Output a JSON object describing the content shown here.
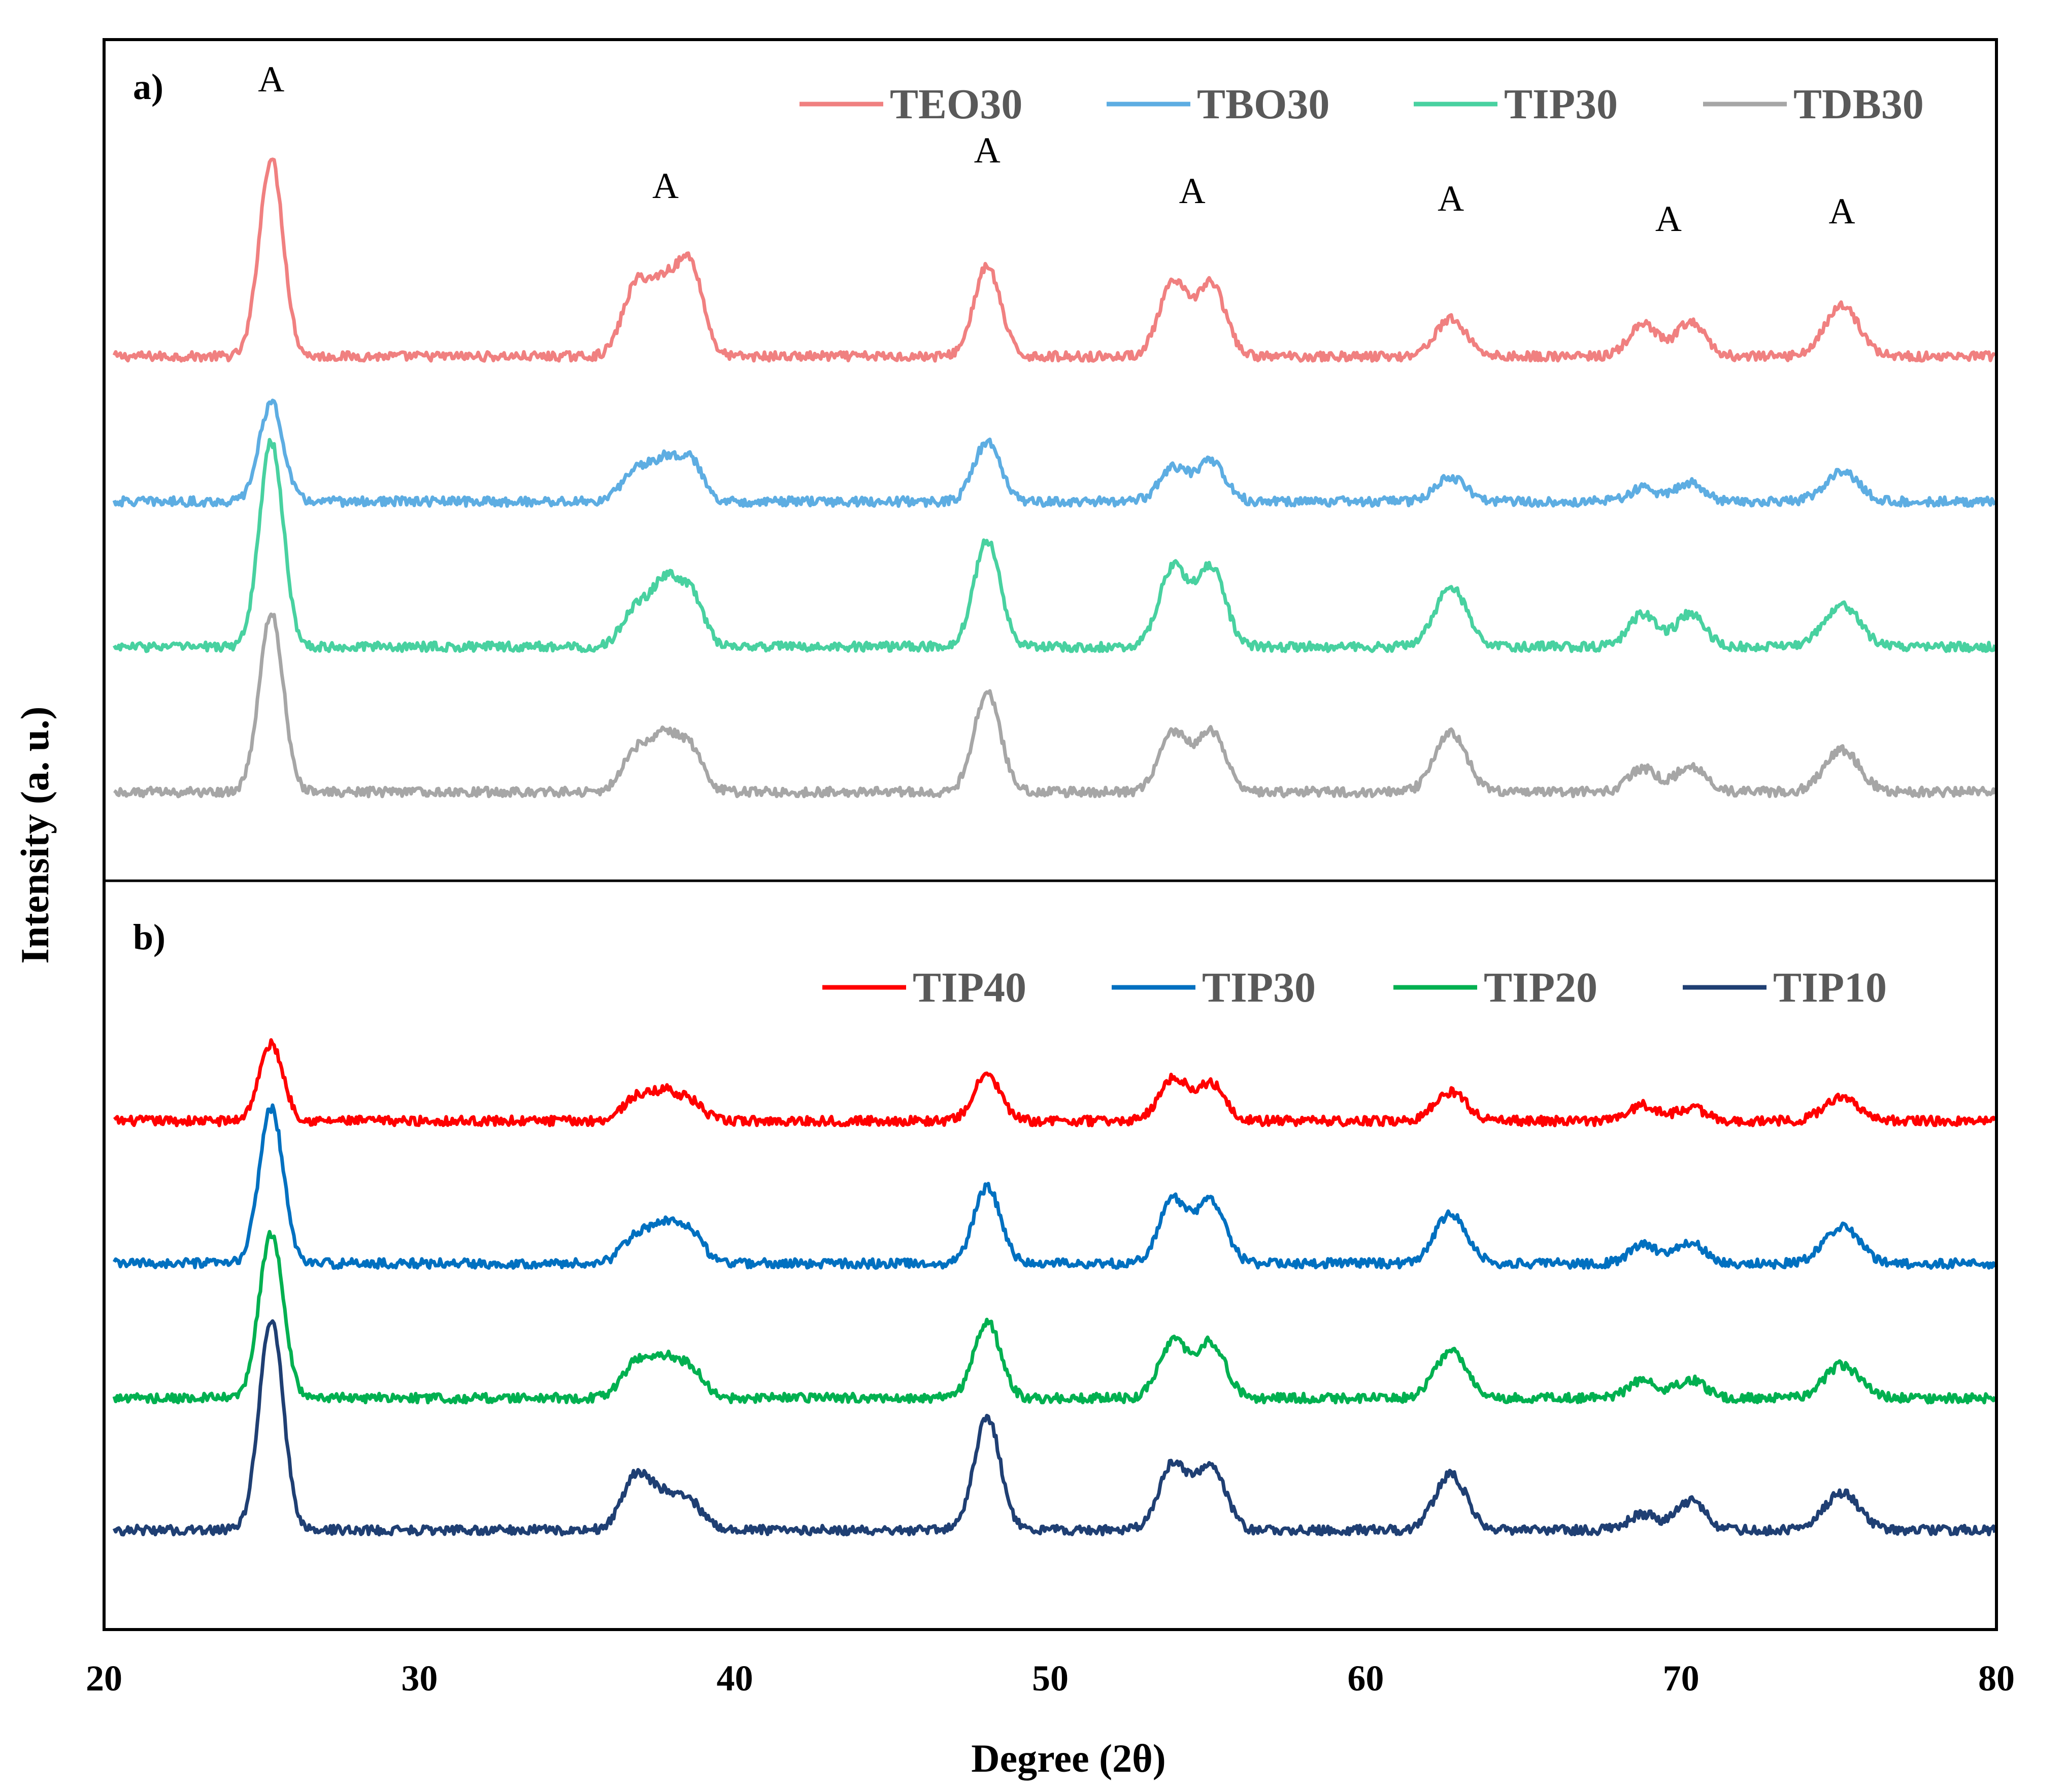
{
  "chart_data": {
    "type": "line",
    "xlabel": "Degree (2θ)",
    "ylabel": "Intensity  (a. u.)",
    "xlim": [
      20,
      80
    ],
    "xticks": [
      20,
      30,
      40,
      50,
      60,
      70,
      80
    ],
    "yticks": "none (arbitrary units)",
    "peaks": [
      {
        "position": 25.3,
        "width": 0.38
      },
      {
        "position": 36.9,
        "width": 0.45
      },
      {
        "position": 37.8,
        "width": 0.4
      },
      {
        "position": 38.6,
        "width": 0.4
      },
      {
        "position": 48.0,
        "width": 0.42
      },
      {
        "position": 53.9,
        "width": 0.45
      },
      {
        "position": 55.1,
        "width": 0.45
      },
      {
        "position": 62.7,
        "width": 0.5
      },
      {
        "position": 68.8,
        "width": 0.45
      },
      {
        "position": 70.3,
        "width": 0.45
      },
      {
        "position": 75.1,
        "width": 0.55
      }
    ],
    "panels": [
      {
        "label": "a)",
        "peak_labels": [
          {
            "text": "A",
            "x": 25.3
          },
          {
            "text": "A",
            "x": 37.8
          },
          {
            "text": "A",
            "x": 48.0
          },
          {
            "text": "A",
            "x": 54.5
          },
          {
            "text": "A",
            "x": 62.7
          },
          {
            "text": "A",
            "x": 69.6
          },
          {
            "text": "A",
            "x": 75.1
          }
        ],
        "series": [
          {
            "name": "TEO30",
            "color": "#F08080",
            "baseline": 0,
            "intensities": [
              150,
              55,
              48,
              68,
              68,
              55,
              55,
              28,
              24,
              26,
              38
            ]
          },
          {
            "name": "TBO30",
            "color": "#5DADE2",
            "baseline": -110,
            "intensities": [
              75,
              25,
              28,
              30,
              45,
              25,
              30,
              18,
              10,
              14,
              22
            ]
          },
          {
            "name": "TIP30",
            "color": "#48D1A0",
            "baseline": -220,
            "intensities": [
              155,
              30,
              45,
              40,
              80,
              60,
              60,
              45,
              25,
              25,
              32
            ]
          },
          {
            "name": "TDB30",
            "color": "#A6A6A6",
            "baseline": -330,
            "intensities": [
              135,
              32,
              38,
              32,
              75,
              45,
              45,
              45,
              18,
              20,
              32
            ]
          }
        ]
      },
      {
        "label": "b)",
        "peak_labels": [],
        "series": [
          {
            "name": "TIP40",
            "color": "#FF0000",
            "baseline": 0,
            "intensities": [
              58,
              18,
              20,
              14,
              35,
              32,
              28,
              22,
              12,
              10,
              18
            ]
          },
          {
            "name": "TIP30",
            "color": "#0070C0",
            "baseline": -108,
            "intensities": [
              118,
              22,
              26,
              24,
              58,
              48,
              48,
              38,
              14,
              16,
              28
            ]
          },
          {
            "name": "TIP20",
            "color": "#00B050",
            "baseline": -210,
            "intensities": [
              125,
              28,
              26,
              22,
              58,
              42,
              42,
              35,
              14,
              14,
              25
            ]
          },
          {
            "name": "TIP10",
            "color": "#1F3F73",
            "baseline": -310,
            "intensities": [
              160,
              42,
              22,
              20,
              85,
              50,
              50,
              42,
              12,
              22,
              28
            ]
          }
        ]
      }
    ]
  }
}
